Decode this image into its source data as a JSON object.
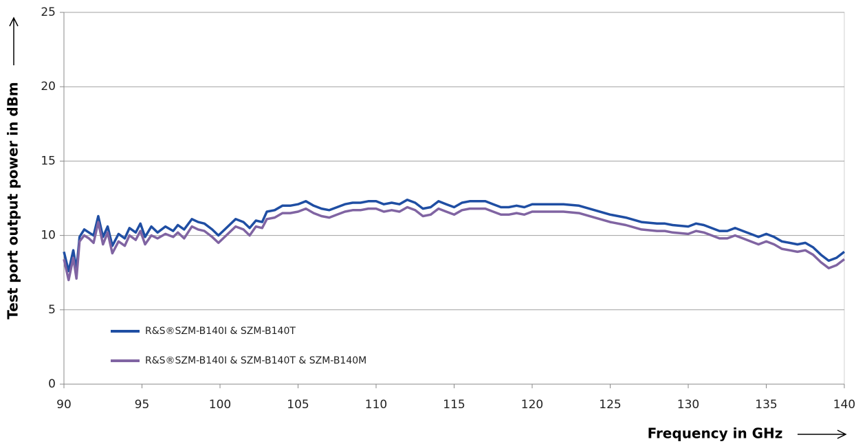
{
  "chart_data": {
    "type": "line",
    "x_label": "Frequency in GHz",
    "y_label": "Test port output power in dBm",
    "x": [
      90,
      90.3,
      90.6,
      90.8,
      91,
      91.3,
      91.6,
      91.9,
      92.2,
      92.5,
      92.8,
      93.1,
      93.5,
      93.9,
      94.2,
      94.6,
      94.9,
      95.2,
      95.6,
      96,
      96.5,
      97,
      97.3,
      97.7,
      98.2,
      98.6,
      99,
      99.5,
      99.9,
      100.5,
      101,
      101.5,
      101.9,
      102.3,
      102.7,
      103,
      103.5,
      104,
      104.5,
      105,
      105.5,
      106,
      106.5,
      107,
      107.5,
      108,
      108.5,
      109,
      109.5,
      110,
      110.5,
      111,
      111.5,
      112,
      112.5,
      113,
      113.5,
      114,
      114.5,
      115,
      115.5,
      116,
      116.5,
      117,
      117.5,
      118,
      118.5,
      119,
      119.5,
      120,
      121,
      122,
      123,
      124,
      125,
      126,
      127,
      128,
      128.5,
      129,
      130,
      130.5,
      131,
      132,
      132.5,
      133,
      133.5,
      134,
      134.5,
      135,
      135.5,
      136,
      136.5,
      137,
      137.5,
      138,
      138.5,
      139,
      139.5,
      140
    ],
    "series": [
      {
        "name": "R&S®SZM-B140I & SZM-B140T",
        "color": "#1f4ea3",
        "values": [
          8.9,
          7.6,
          9.0,
          7.7,
          9.9,
          10.4,
          10.2,
          10.0,
          11.3,
          9.9,
          10.6,
          9.3,
          10.1,
          9.8,
          10.5,
          10.2,
          10.8,
          9.9,
          10.6,
          10.2,
          10.6,
          10.3,
          10.7,
          10.4,
          11.1,
          10.9,
          10.8,
          10.4,
          10.0,
          10.6,
          11.1,
          10.9,
          10.5,
          11.0,
          10.9,
          11.6,
          11.7,
          12.0,
          12.0,
          12.1,
          12.3,
          12.0,
          11.8,
          11.7,
          11.9,
          12.1,
          12.2,
          12.2,
          12.3,
          12.3,
          12.1,
          12.2,
          12.1,
          12.4,
          12.2,
          11.8,
          11.9,
          12.3,
          12.1,
          11.9,
          12.2,
          12.3,
          12.3,
          12.3,
          12.1,
          11.9,
          11.9,
          12.0,
          11.9,
          12.1,
          12.1,
          12.1,
          12.0,
          11.7,
          11.4,
          11.2,
          10.9,
          10.8,
          10.8,
          10.7,
          10.6,
          10.8,
          10.7,
          10.3,
          10.3,
          10.5,
          10.3,
          10.1,
          9.9,
          10.1,
          9.9,
          9.6,
          9.5,
          9.4,
          9.5,
          9.2,
          8.7,
          8.3,
          8.5,
          8.9
        ]
      },
      {
        "name": "R&S®SZM-B140I & SZM-B140T & SZM-B140M",
        "color": "#8064a2",
        "values": [
          8.4,
          7.0,
          8.5,
          7.1,
          9.6,
          10.0,
          9.8,
          9.5,
          10.9,
          9.4,
          10.2,
          8.8,
          9.6,
          9.3,
          10.0,
          9.7,
          10.3,
          9.4,
          10.0,
          9.8,
          10.1,
          9.9,
          10.2,
          9.8,
          10.6,
          10.4,
          10.3,
          9.9,
          9.5,
          10.1,
          10.6,
          10.4,
          10.0,
          10.6,
          10.5,
          11.1,
          11.2,
          11.5,
          11.5,
          11.6,
          11.8,
          11.5,
          11.3,
          11.2,
          11.4,
          11.6,
          11.7,
          11.7,
          11.8,
          11.8,
          11.6,
          11.7,
          11.6,
          11.9,
          11.7,
          11.3,
          11.4,
          11.8,
          11.6,
          11.4,
          11.7,
          11.8,
          11.8,
          11.8,
          11.6,
          11.4,
          11.4,
          11.5,
          11.4,
          11.6,
          11.6,
          11.6,
          11.5,
          11.2,
          10.9,
          10.7,
          10.4,
          10.3,
          10.3,
          10.2,
          10.1,
          10.3,
          10.2,
          9.8,
          9.8,
          10.0,
          9.8,
          9.6,
          9.4,
          9.6,
          9.4,
          9.1,
          9.0,
          8.9,
          9.0,
          8.7,
          8.2,
          7.8,
          8.0,
          8.4
        ]
      }
    ],
    "xlim": [
      90,
      140
    ],
    "xticks": [
      90,
      95,
      100,
      105,
      110,
      115,
      120,
      125,
      130,
      135,
      140
    ],
    "ylim": [
      0,
      25
    ],
    "yticks": [
      0,
      5,
      10,
      15,
      20,
      25
    ],
    "grid": true,
    "legend": "lower left"
  }
}
